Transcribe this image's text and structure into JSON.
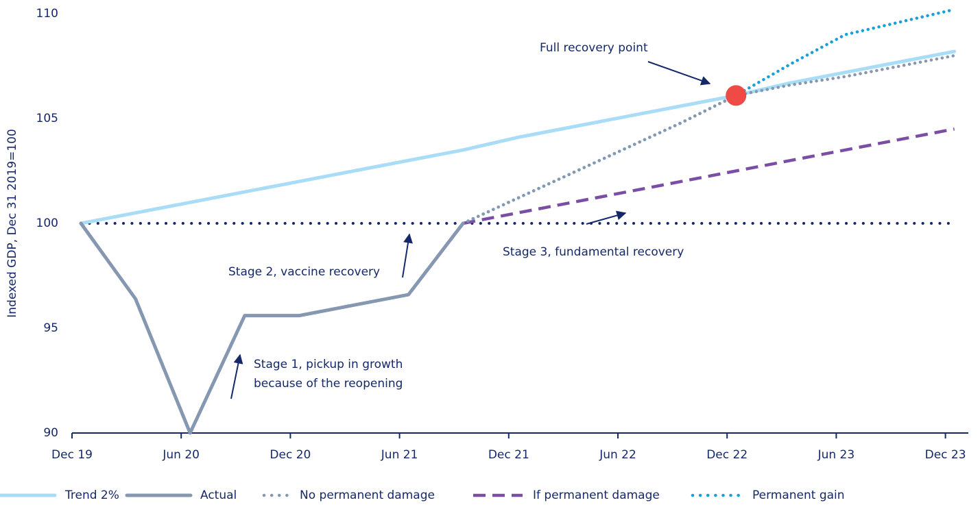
{
  "chart_data": {
    "type": "line",
    "y_label": "Indexed GDP, Dec 31 2019=100",
    "categories": [
      "Dec 19",
      null,
      "Jun 20",
      null,
      "Dec 20",
      null,
      "Jun 21",
      null,
      "Dec 21",
      null,
      "Jun 22",
      null,
      "Dec 22",
      null,
      "Jun 23",
      null,
      "Dec 23"
    ],
    "ylim": [
      90,
      110
    ],
    "yticks": [
      90,
      95,
      100,
      105,
      110
    ],
    "baseline": {
      "value": 100,
      "color": "#14286a"
    },
    "series": [
      {
        "name": "Trend 2%",
        "color": "#a9dcf6",
        "style": "solid",
        "values": [
          100,
          100.5,
          101.0,
          101.5,
          102.0,
          102.5,
          103.0,
          103.5,
          104.1,
          104.6,
          105.1,
          105.6,
          106.1,
          106.7,
          107.2,
          107.7,
          108.2
        ]
      },
      {
        "name": "Actual",
        "color": "#8597b1",
        "style": "solid",
        "values": [
          100,
          96.4,
          90,
          95.6,
          95.6,
          96.1,
          96.6,
          100,
          null,
          null,
          null,
          null,
          null,
          null,
          null,
          null,
          null
        ]
      },
      {
        "name": "No permanent damage",
        "color": "#8597b1",
        "style": "dotted",
        "values": [
          null,
          null,
          null,
          null,
          null,
          null,
          null,
          100,
          101.2,
          102.4,
          103.6,
          104.8,
          106.1,
          106.6,
          107.0,
          107.5,
          108.0
        ]
      },
      {
        "name": "If permanent damage",
        "color": "#7b4ea6",
        "style": "dashed",
        "values": [
          null,
          null,
          null,
          null,
          null,
          null,
          null,
          100,
          100.5,
          101.0,
          101.5,
          102.0,
          102.5,
          103.0,
          103.5,
          104.0,
          104.5
        ]
      },
      {
        "name": "Permanent gain",
        "color": "#1b9fd9",
        "style": "dotted",
        "values": [
          null,
          null,
          null,
          null,
          null,
          null,
          null,
          100,
          101.2,
          102.4,
          103.6,
          104.8,
          106.1,
          107.6,
          109.0,
          109.6,
          110.2
        ]
      }
    ],
    "highlight": {
      "color": "#ef4a45",
      "values": [
        null,
        null,
        null,
        null,
        null,
        null,
        null,
        null,
        null,
        null,
        null,
        null,
        106.1,
        null,
        null,
        null,
        null
      ]
    },
    "annotations": [
      [
        "Full recovery point"
      ],
      [
        "Stage 2, vaccine recovery"
      ],
      [
        "Stage 3, fundamental recovery"
      ],
      [
        "Stage 1, pickup in growth",
        "because of the reopening"
      ]
    ]
  }
}
